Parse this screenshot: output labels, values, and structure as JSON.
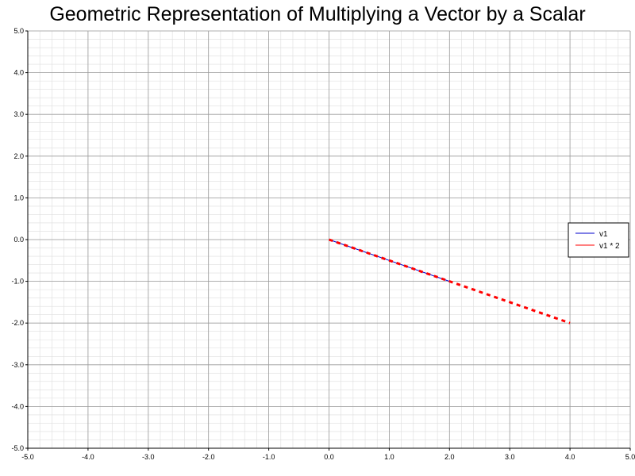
{
  "chart_data": {
    "type": "line",
    "title": "Geometric Representation of Multiplying a Vector by a Scalar",
    "xlabel": "",
    "ylabel": "",
    "xlim": [
      -5.0,
      5.0
    ],
    "ylim": [
      -5.0,
      5.0
    ],
    "xticks": [
      -5.0,
      -4.0,
      -3.0,
      -2.0,
      -1.0,
      0.0,
      1.0,
      2.0,
      3.0,
      4.0,
      5.0
    ],
    "yticks": [
      -5.0,
      -4.0,
      -3.0,
      -2.0,
      -1.0,
      0.0,
      1.0,
      2.0,
      3.0,
      4.0,
      5.0
    ],
    "xtick_labels": [
      "-5.0",
      "-4.0",
      "-3.0",
      "-2.0",
      "-1.0",
      "0.0",
      "1.0",
      "2.0",
      "3.0",
      "4.0",
      "5.0"
    ],
    "ytick_labels": [
      "-5.0",
      "-4.0",
      "-3.0",
      "-2.0",
      "-1.0",
      "0.0",
      "1.0",
      "2.0",
      "3.0",
      "4.0",
      "5.0"
    ],
    "grid": true,
    "minor_grid": true,
    "legend_position": "right",
    "series": [
      {
        "name": "v1",
        "x": [
          0.0,
          2.0
        ],
        "y": [
          0.0,
          -1.0
        ],
        "color": "#0000cc",
        "style": "solid"
      },
      {
        "name": "v1 * 2",
        "x": [
          0.0,
          4.0
        ],
        "y": [
          0.0,
          -2.0
        ],
        "color": "#ff0000",
        "style": "dashed"
      }
    ]
  }
}
